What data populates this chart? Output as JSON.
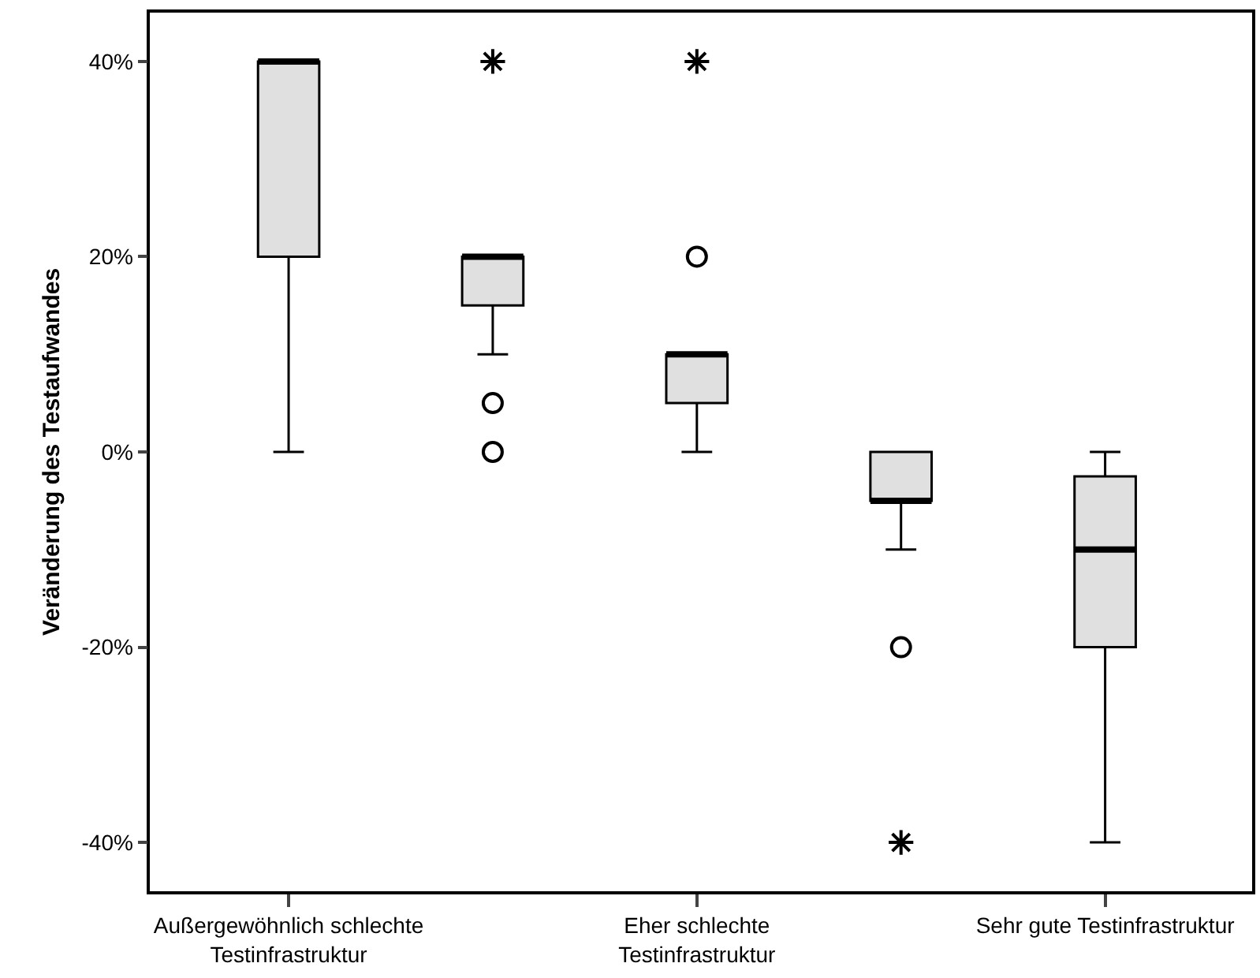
{
  "chart_data": {
    "type": "box",
    "ylabel": "Veränderung des Testaufwandes",
    "categories": [
      "Außergewöhnlich schlechte\nTestinfrastruktur",
      null,
      "Eher schlechte\nTestinfrastruktur",
      null,
      "Sehr gute Testinfrastruktur"
    ],
    "boxes": [
      {
        "low": 0,
        "q1": 20,
        "median": 40,
        "q3": 40,
        "high": 40
      },
      {
        "low": 10,
        "q1": 15,
        "median": 20,
        "q3": 20,
        "high": 20,
        "outliers": [
          0,
          5,
          40
        ]
      },
      {
        "low": 0,
        "q1": 5,
        "median": 10,
        "q3": 10,
        "high": 10,
        "outliers": [
          20,
          40
        ]
      },
      {
        "low": -10,
        "q1": -5,
        "median": -5,
        "q3": 0,
        "high": 0,
        "outliers": [
          -20,
          -40
        ]
      },
      {
        "low": -40,
        "q1": -20,
        "median": -10,
        "q3": -2.5,
        "high": 0
      }
    ],
    "color": "#e0e0e0",
    "ylim": [
      -45,
      45
    ],
    "yticks": [
      {
        "value": -40,
        "label": "-40%"
      },
      {
        "value": -20,
        "label": "-20%"
      },
      {
        "value": 0,
        "label": "0%"
      },
      {
        "value": 20,
        "label": "20%"
      },
      {
        "value": 40,
        "label": "40%"
      }
    ],
    "grid": false
  }
}
